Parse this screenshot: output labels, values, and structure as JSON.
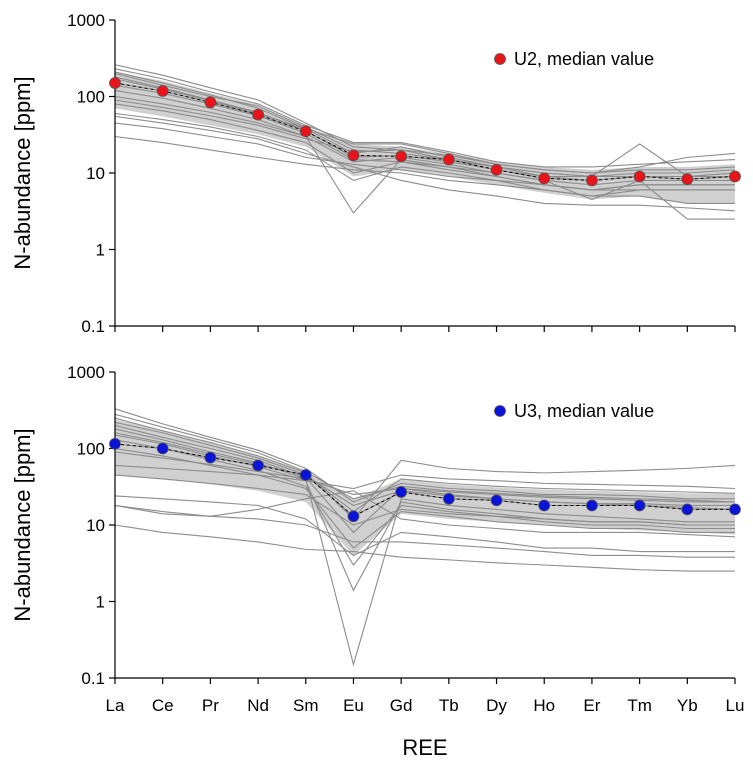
{
  "chart_data": [
    {
      "type": "line",
      "scale": "log",
      "ylabel": "N-abundance [ppm]",
      "xlabel": "",
      "ylim": [
        0.1,
        1000
      ],
      "yticks": [
        "1000",
        "100",
        "10",
        "1",
        "0.1"
      ],
      "categories": [
        "La",
        "Ce",
        "Pr",
        "Nd",
        "Sm",
        "Eu",
        "Gd",
        "Tb",
        "Dy",
        "Ho",
        "Er",
        "Tm",
        "Yb",
        "Lu"
      ],
      "legend": {
        "label": "U2, median value",
        "position": "top-right"
      },
      "colors": {
        "marker": "#e8141a",
        "band": "#d0d0d0",
        "lines": "#8c8c8c"
      },
      "series": [
        {
          "values": [
            150,
            118,
            84,
            58,
            35,
            17,
            16.5,
            15,
            11,
            8.5,
            8,
            9,
            8.3,
            9
          ]
        },
        {
          "values": [
            200,
            140,
            100,
            75,
            40,
            20,
            18,
            15,
            12,
            10,
            9,
            10,
            10,
            11
          ]
        },
        {
          "values": [
            180,
            130,
            90,
            62,
            36,
            16,
            17,
            14,
            11,
            9,
            8,
            9,
            9,
            10
          ]
        },
        {
          "values": [
            120,
            95,
            70,
            50,
            30,
            14,
            16,
            13,
            10,
            8,
            7,
            8,
            8,
            8
          ]
        },
        {
          "values": [
            260,
            190,
            130,
            90,
            45,
            22,
            20,
            17,
            13,
            11,
            10,
            11,
            11,
            12
          ]
        },
        {
          "values": [
            80,
            65,
            50,
            36,
            25,
            10,
            14,
            11,
            9,
            7,
            6,
            7,
            7,
            7
          ]
        },
        {
          "values": [
            60,
            50,
            40,
            30,
            20,
            8,
            12,
            10,
            8,
            6,
            5,
            6,
            6,
            6
          ]
        },
        {
          "values": [
            30,
            25,
            20,
            16,
            13,
            11,
            10,
            8,
            7,
            6,
            5,
            5,
            4,
            4
          ]
        },
        {
          "values": [
            100,
            80,
            62,
            45,
            30,
            3,
            15,
            12,
            9,
            7,
            6,
            7,
            7,
            7
          ]
        },
        {
          "values": [
            170,
            125,
            88,
            60,
            38,
            18,
            22,
            16,
            12,
            9,
            9,
            24,
            9,
            10
          ]
        },
        {
          "values": [
            140,
            110,
            80,
            56,
            33,
            15,
            14,
            12,
            10,
            8,
            4.5,
            8,
            2.5,
            2.5
          ]
        },
        {
          "values": [
            55,
            45,
            36,
            28,
            18,
            12,
            8,
            6,
            5,
            4,
            3.8,
            3.8,
            3.5,
            3.2
          ]
        },
        {
          "values": [
            230,
            170,
            115,
            80,
            42,
            25,
            25,
            19,
            14,
            12,
            12,
            13,
            14,
            15
          ]
        },
        {
          "values": [
            90,
            72,
            56,
            42,
            28,
            19,
            20,
            15,
            12,
            10,
            9,
            9,
            9,
            9
          ]
        },
        {
          "values": [
            210,
            150,
            105,
            70,
            38,
            24,
            24,
            18,
            13,
            11,
            10,
            12,
            16,
            18
          ]
        },
        {
          "values": [
            45,
            38,
            30,
            24,
            16,
            13,
            11,
            9,
            8,
            7,
            6,
            6,
            6,
            6
          ]
        }
      ],
      "median": {
        "name": "U2, median value",
        "values": [
          150,
          118,
          84,
          58,
          35,
          17,
          16.5,
          15,
          11,
          8.5,
          8,
          9,
          8.3,
          9
        ]
      },
      "band": {
        "upper": [
          210,
          160,
          110,
          78,
          40,
          24,
          22,
          18,
          14,
          12,
          11,
          12,
          12,
          13
        ],
        "lower": [
          70,
          55,
          42,
          32,
          22,
          9,
          11,
          9,
          7,
          5.5,
          4.5,
          5,
          4,
          4
        ]
      }
    },
    {
      "type": "line",
      "scale": "log",
      "ylabel": "N-abundance [ppm]",
      "xlabel": "REE",
      "ylim": [
        0.1,
        1000
      ],
      "yticks": [
        "1000",
        "100",
        "10",
        "1",
        "0.1"
      ],
      "categories": [
        "La",
        "Ce",
        "Pr",
        "Nd",
        "Sm",
        "Eu",
        "Gd",
        "Tb",
        "Dy",
        "Ho",
        "Er",
        "Tm",
        "Yb",
        "Lu"
      ],
      "legend": {
        "label": "U3, median value",
        "position": "top-right"
      },
      "colors": {
        "marker": "#0a14d8",
        "band": "#d0d0d0",
        "lines": "#8c8c8c"
      },
      "series": [
        {
          "values": [
            115,
            100,
            76,
            60,
            45,
            13,
            27,
            22,
            21,
            18,
            18,
            18,
            16,
            16
          ]
        },
        {
          "values": [
            330,
            210,
            140,
            95,
            55,
            20,
            35,
            30,
            28,
            25,
            25,
            24,
            22,
            22
          ]
        },
        {
          "values": [
            250,
            170,
            120,
            80,
            48,
            12,
            70,
            55,
            50,
            48,
            50,
            52,
            55,
            60
          ]
        },
        {
          "values": [
            200,
            140,
            100,
            70,
            42,
            8,
            30,
            25,
            22,
            20,
            19,
            18,
            17,
            16
          ]
        },
        {
          "values": [
            180,
            130,
            90,
            65,
            40,
            0.15,
            22,
            18,
            16,
            14,
            13,
            12,
            11,
            11
          ]
        },
        {
          "values": [
            150,
            115,
            80,
            58,
            38,
            1.4,
            20,
            16,
            14,
            12,
            11,
            11,
            10,
            10
          ]
        },
        {
          "values": [
            130,
            100,
            72,
            52,
            32,
            3,
            18,
            15,
            13,
            11,
            10,
            10,
            9,
            9
          ]
        },
        {
          "values": [
            100,
            80,
            60,
            45,
            30,
            5,
            15,
            13,
            11,
            10,
            9,
            9,
            8,
            8
          ]
        },
        {
          "values": [
            24,
            22,
            20,
            18,
            12,
            4,
            8,
            7,
            6,
            5,
            5,
            4.5,
            4.5,
            4.5
          ]
        },
        {
          "values": [
            18,
            15,
            13,
            12,
            10,
            6,
            6,
            5.5,
            5,
            4.5,
            4,
            4,
            3.8,
            3.8
          ]
        },
        {
          "values": [
            10,
            8,
            7,
            6,
            4.8,
            4.5,
            3.8,
            3.5,
            3.2,
            3,
            2.8,
            2.6,
            2.5,
            2.5
          ]
        },
        {
          "values": [
            60,
            55,
            50,
            45,
            38,
            30,
            45,
            40,
            38,
            35,
            34,
            33,
            32,
            30
          ]
        },
        {
          "values": [
            220,
            160,
            110,
            75,
            45,
            15,
            40,
            35,
            32,
            30,
            29,
            28,
            27,
            26
          ]
        },
        {
          "values": [
            90,
            75,
            62,
            50,
            40,
            25,
            30,
            27,
            25,
            23,
            22,
            21,
            20,
            20
          ]
        },
        {
          "values": [
            18,
            14,
            13,
            16,
            22,
            28,
            12,
            10,
            9,
            8,
            8,
            8,
            7.5,
            7
          ]
        },
        {
          "values": [
            160,
            120,
            85,
            62,
            44,
            18,
            28,
            24,
            22,
            20,
            19,
            19,
            18,
            18
          ]
        },
        {
          "values": [
            45,
            40,
            35,
            30,
            25,
            10,
            16,
            14,
            13,
            12,
            11,
            11,
            10,
            10
          ]
        },
        {
          "values": [
            280,
            190,
            130,
            88,
            50,
            22,
            32,
            28,
            26,
            24,
            23,
            22,
            21,
            20
          ]
        }
      ],
      "median": {
        "name": "U3, median value",
        "values": [
          115,
          100,
          76,
          60,
          45,
          13,
          27,
          22,
          21,
          18,
          18,
          18,
          16,
          16
        ]
      },
      "band": {
        "upper": [
          240,
          175,
          120,
          82,
          50,
          22,
          40,
          34,
          31,
          29,
          28,
          27,
          26,
          26
        ],
        "lower": [
          45,
          40,
          34,
          28,
          20,
          4,
          14,
          12,
          11,
          10,
          9,
          8.5,
          8,
          7.5
        ]
      }
    }
  ]
}
